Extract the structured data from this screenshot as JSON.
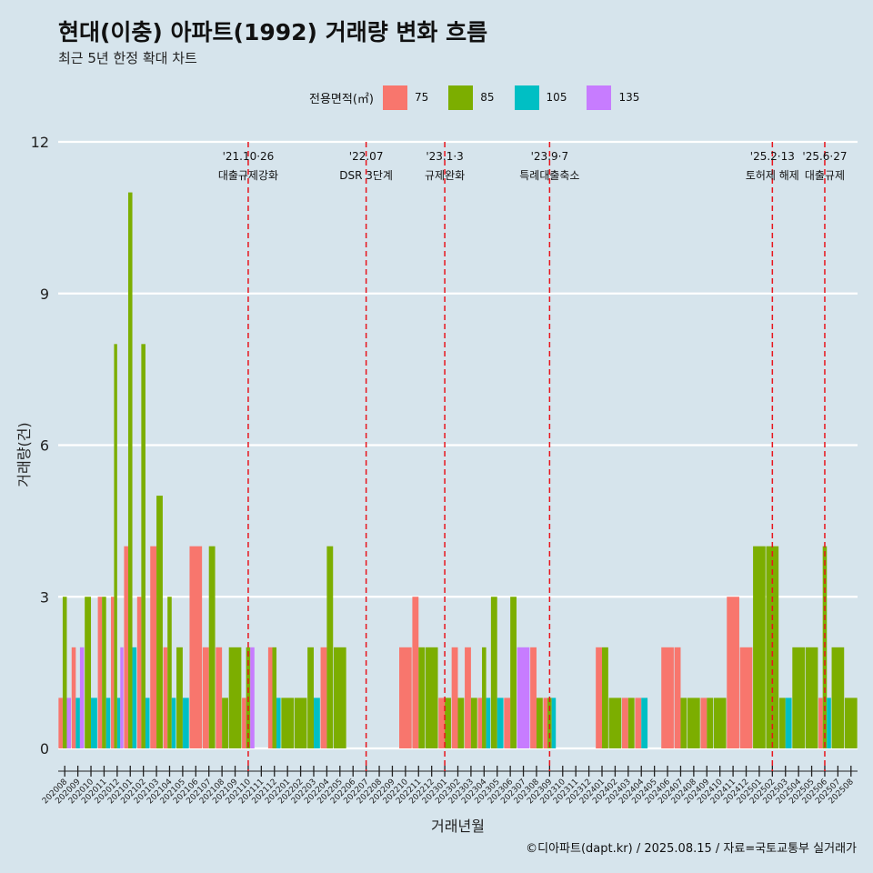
{
  "header": {
    "title": "현대(이충) 아파트(1992) 거래량 변화 흐름",
    "subtitle": "최근 5년 한정 확대 차트"
  },
  "legend": {
    "title": "전용면적(㎡)",
    "items": [
      {
        "label": "75",
        "color": "#F8766D"
      },
      {
        "label": "85",
        "color": "#7CAE00"
      },
      {
        "label": "105",
        "color": "#00BFC4"
      },
      {
        "label": "135",
        "color": "#C77CFF"
      }
    ]
  },
  "caption": "©디아파트(dapt.kr) / 2025.08.15 / 자료=국토교통부 실거래가",
  "chart_data": {
    "type": "bar",
    "title": "현대(이충) 아파트(1992) 거래량 변화 흐름",
    "subtitle": "최근 5년 한정 확대 차트",
    "xlabel": "거래년월",
    "ylabel": "거래량(건)",
    "ylim": [
      0,
      12
    ],
    "yticks": [
      0,
      3,
      6,
      9,
      12
    ],
    "grid": "horizontal",
    "legend_position": "top",
    "categories": [
      "202008",
      "202009",
      "202010",
      "202011",
      "202012",
      "202101",
      "202102",
      "202103",
      "202104",
      "202105",
      "202106",
      "202107",
      "202108",
      "202109",
      "202110",
      "202111",
      "202112",
      "202201",
      "202202",
      "202203",
      "202204",
      "202205",
      "202206",
      "202207",
      "202208",
      "202209",
      "202210",
      "202211",
      "202212",
      "202301",
      "202302",
      "202303",
      "202304",
      "202305",
      "202306",
      "202307",
      "202308",
      "202309",
      "202310",
      "202311",
      "202312",
      "202401",
      "202402",
      "202403",
      "202404",
      "202405",
      "202406",
      "202407",
      "202408",
      "202409",
      "202410",
      "202411",
      "202412",
      "202501",
      "202502",
      "202503",
      "202504",
      "202505",
      "202506",
      "202507",
      "202508"
    ],
    "series": [
      {
        "name": "75",
        "values": [
          1,
          2,
          0,
          3,
          3,
          4,
          3,
          4,
          2,
          0,
          4,
          2,
          2,
          0,
          1,
          0,
          2,
          0,
          0,
          0,
          2,
          0,
          0,
          0,
          0,
          0,
          2,
          3,
          0,
          1,
          2,
          2,
          1,
          0,
          1,
          0,
          2,
          1,
          0,
          0,
          0,
          2,
          0,
          1,
          1,
          0,
          2,
          2,
          0,
          1,
          0,
          3,
          2,
          0,
          0,
          0,
          0,
          0,
          1,
          0,
          0
        ]
      },
      {
        "name": "85",
        "values": [
          3,
          0,
          3,
          3,
          8,
          11,
          8,
          5,
          3,
          2,
          0,
          4,
          1,
          2,
          2,
          0,
          2,
          1,
          1,
          2,
          4,
          2,
          0,
          0,
          0,
          0,
          0,
          2,
          2,
          1,
          1,
          1,
          2,
          3,
          3,
          0,
          1,
          1,
          0,
          0,
          0,
          2,
          1,
          1,
          0,
          0,
          0,
          1,
          1,
          1,
          1,
          0,
          0,
          4,
          4,
          1,
          2,
          2,
          4,
          2,
          1
        ]
      },
      {
        "name": "105",
        "values": [
          0,
          1,
          1,
          1,
          1,
          2,
          1,
          0,
          1,
          1,
          0,
          0,
          0,
          0,
          0,
          0,
          1,
          0,
          0,
          1,
          0,
          0,
          0,
          0,
          0,
          0,
          0,
          0,
          0,
          0,
          0,
          0,
          1,
          1,
          0,
          0,
          0,
          1,
          0,
          0,
          0,
          0,
          0,
          0,
          1,
          0,
          0,
          0,
          0,
          0,
          0,
          0,
          0,
          0,
          0,
          1,
          0,
          0,
          1,
          0,
          0
        ]
      },
      {
        "name": "135",
        "values": [
          1,
          2,
          0,
          0,
          2,
          0,
          0,
          0,
          0,
          0,
          0,
          0,
          0,
          0,
          2,
          0,
          0,
          0,
          0,
          0,
          0,
          0,
          0,
          0,
          0,
          0,
          0,
          0,
          0,
          0,
          0,
          0,
          0,
          0,
          0,
          2,
          0,
          0,
          0,
          0,
          0,
          0,
          0,
          0,
          0,
          0,
          0,
          0,
          0,
          0,
          0,
          0,
          0,
          0,
          0,
          0,
          0,
          0,
          0,
          0,
          0
        ]
      }
    ],
    "events": [
      {
        "date": "'21.10·26",
        "label": "대출규제강화",
        "at": "202110"
      },
      {
        "date": "'22.07",
        "label": "DSR 3단계",
        "at": "202207"
      },
      {
        "date": "'23.1·3",
        "label": "규제완화",
        "at": "202301"
      },
      {
        "date": "'23.9·7",
        "label": "특례대출축소",
        "at": "202309"
      },
      {
        "date": "'25.2·13",
        "label": "토허제 해제",
        "at": "202502"
      },
      {
        "date": "'25.6·27",
        "label": "대출규제",
        "at": "202506"
      }
    ]
  }
}
